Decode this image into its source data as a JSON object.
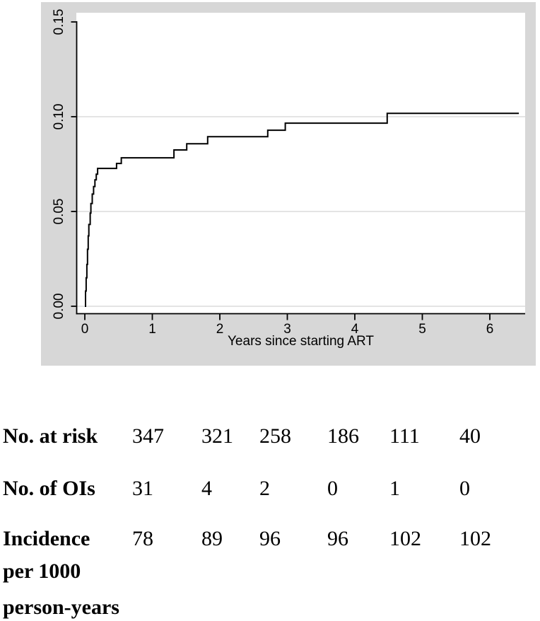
{
  "chart_data": {
    "type": "line",
    "subtype": "step-cumulative-incidence",
    "title": "",
    "xlabel": "Years since starting ART",
    "ylabel": "",
    "x_ticks": [
      "0",
      "1",
      "2",
      "3",
      "4",
      "5",
      "6"
    ],
    "y_ticks": [
      "0.00",
      "0.05",
      "0.10",
      "0.15"
    ],
    "xlim": [
      0,
      6.55
    ],
    "ylim": [
      0,
      0.157
    ],
    "grid": "horizontal",
    "legend": "none",
    "line_color": "#000000",
    "background_color": "#d7d7d7",
    "series": [
      {
        "name": "cumulative-incidence-curve",
        "step_points": [
          [
            0.0,
            0.0
          ],
          [
            0.01,
            0.008
          ],
          [
            0.02,
            0.015
          ],
          [
            0.03,
            0.022
          ],
          [
            0.04,
            0.03
          ],
          [
            0.05,
            0.037
          ],
          [
            0.06,
            0.043
          ],
          [
            0.08,
            0.049
          ],
          [
            0.09,
            0.054
          ],
          [
            0.11,
            0.059
          ],
          [
            0.13,
            0.063
          ],
          [
            0.15,
            0.0665
          ],
          [
            0.17,
            0.0695
          ],
          [
            0.19,
            0.0725
          ],
          [
            0.47,
            0.0751
          ],
          [
            0.54,
            0.0781
          ],
          [
            1.32,
            0.0822
          ],
          [
            1.51,
            0.0855
          ],
          [
            1.82,
            0.0892
          ],
          [
            2.71,
            0.0926
          ],
          [
            2.97,
            0.0963
          ],
          [
            4.48,
            0.1015
          ]
        ],
        "end_x": 6.43
      }
    ]
  },
  "risk_table": {
    "rows": [
      {
        "label": "No. at risk",
        "values": [
          "347",
          "321",
          "258",
          "186",
          "111",
          "40"
        ]
      },
      {
        "label": "No. of OIs",
        "values": [
          "31",
          "4",
          "2",
          "0",
          "1",
          "0"
        ]
      },
      {
        "label": "Incidence per 1000 person-years",
        "label_lines": [
          "Incidence",
          "per 1000",
          "person-years"
        ],
        "values": [
          "78",
          "89",
          "96",
          "96",
          "102",
          "102"
        ]
      }
    ]
  }
}
